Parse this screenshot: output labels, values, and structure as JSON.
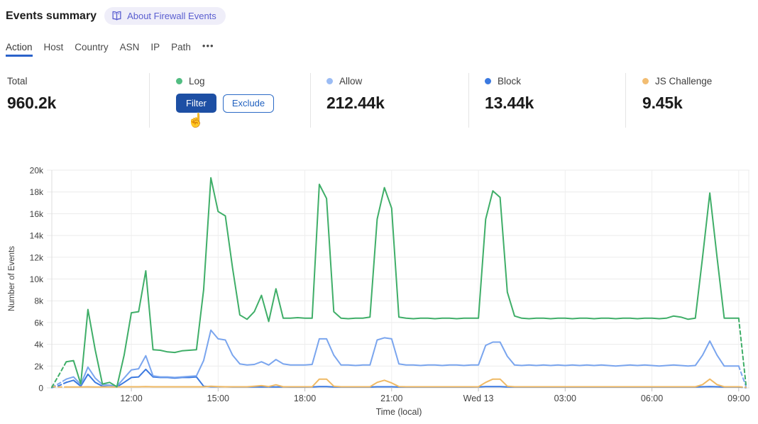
{
  "header": {
    "title": "Events summary",
    "about_label": "About Firewall Events"
  },
  "tabs": {
    "items": [
      "Action",
      "Host",
      "Country",
      "ASN",
      "IP",
      "Path"
    ],
    "active": "Action",
    "overflow": "•••"
  },
  "icons": {
    "book": "open-book",
    "cursor": "☝"
  },
  "stats": {
    "total": {
      "label": "Total",
      "value": "960.2k"
    },
    "log": {
      "label": "Log",
      "dot_color": "#52bd82",
      "filter_label": "Filter",
      "exclude_label": "Exclude"
    },
    "allow": {
      "label": "Allow",
      "value": "212.44k",
      "dot_color": "#9bbcf4"
    },
    "block": {
      "label": "Block",
      "value": "13.44k",
      "dot_color": "#3b79e0"
    },
    "js_challenge": {
      "label": "JS Challenge",
      "value": "9.45k",
      "dot_color": "#f2bd72"
    }
  },
  "chart_data": {
    "type": "line",
    "xlabel": "Time (local)",
    "ylabel": "Number of Events",
    "ylim_k": [
      0,
      20
    ],
    "grid": true,
    "legend_position": "stats-row",
    "x_start": "09:15",
    "x_interval_minutes": 15,
    "dashed_head_points": 2,
    "dashed_tail_points": 1,
    "y_ticks": [
      {
        "label": "0",
        "v": 0
      },
      {
        "label": "2k",
        "v": 2
      },
      {
        "label": "4k",
        "v": 4
      },
      {
        "label": "6k",
        "v": 6
      },
      {
        "label": "8k",
        "v": 8
      },
      {
        "label": "10k",
        "v": 10
      },
      {
        "label": "12k",
        "v": 12
      },
      {
        "label": "14k",
        "v": 14
      },
      {
        "label": "16k",
        "v": 16
      },
      {
        "label": "18k",
        "v": 18
      },
      {
        "label": "20k",
        "v": 20
      }
    ],
    "x_ticks": [
      {
        "label": "12:00",
        "i": 11
      },
      {
        "label": "15:00",
        "i": 23
      },
      {
        "label": "18:00",
        "i": 35
      },
      {
        "label": "21:00",
        "i": 47
      },
      {
        "label": "Wed 13",
        "i": 59
      },
      {
        "label": "03:00",
        "i": 71
      },
      {
        "label": "06:00",
        "i": 83
      },
      {
        "label": "09:00",
        "i": 95
      }
    ],
    "draw_order": [
      2,
      1,
      3,
      0
    ],
    "series": [
      {
        "name": "Log",
        "color": "#3fae68",
        "values_k": [
          0.05,
          1.2,
          2.4,
          2.5,
          0.35,
          7.2,
          3.5,
          0.35,
          0.5,
          0.1,
          3.0,
          6.9,
          7.0,
          10.75,
          3.5,
          3.45,
          3.3,
          3.25,
          3.4,
          3.45,
          3.5,
          9.0,
          19.3,
          16.2,
          15.8,
          11.0,
          6.7,
          6.3,
          7.0,
          8.5,
          6.1,
          9.1,
          6.4,
          6.4,
          6.45,
          6.4,
          6.4,
          18.7,
          17.4,
          7.0,
          6.4,
          6.35,
          6.4,
          6.4,
          6.5,
          15.5,
          18.4,
          16.5,
          6.5,
          6.4,
          6.35,
          6.4,
          6.4,
          6.35,
          6.4,
          6.4,
          6.35,
          6.4,
          6.4,
          6.4,
          15.5,
          18.1,
          17.5,
          8.8,
          6.6,
          6.4,
          6.35,
          6.4,
          6.4,
          6.35,
          6.4,
          6.4,
          6.35,
          6.4,
          6.4,
          6.35,
          6.4,
          6.4,
          6.35,
          6.4,
          6.4,
          6.35,
          6.4,
          6.4,
          6.35,
          6.4,
          6.6,
          6.5,
          6.3,
          6.4,
          12.0,
          17.9,
          12.0,
          6.4,
          6.4,
          6.4,
          0.3
        ]
      },
      {
        "name": "Allow",
        "color": "#7aa5ee",
        "values_k": [
          0.05,
          0.4,
          0.8,
          1.0,
          0.3,
          1.9,
          0.9,
          0.3,
          0.25,
          0.15,
          0.9,
          1.65,
          1.75,
          2.95,
          1.1,
          1.0,
          1.0,
          0.95,
          1.0,
          1.05,
          1.1,
          2.5,
          5.3,
          4.5,
          4.4,
          3.0,
          2.2,
          2.1,
          2.15,
          2.4,
          2.1,
          2.6,
          2.2,
          2.1,
          2.1,
          2.1,
          2.15,
          4.5,
          4.5,
          3.0,
          2.1,
          2.1,
          2.05,
          2.1,
          2.1,
          4.4,
          4.6,
          4.5,
          2.2,
          2.1,
          2.1,
          2.05,
          2.1,
          2.1,
          2.05,
          2.1,
          2.1,
          2.05,
          2.1,
          2.1,
          3.9,
          4.2,
          4.2,
          2.9,
          2.1,
          2.05,
          2.1,
          2.05,
          2.1,
          2.05,
          2.1,
          2.05,
          2.1,
          2.05,
          2.1,
          2.05,
          2.1,
          2.05,
          2.0,
          2.05,
          2.1,
          2.05,
          2.1,
          2.05,
          2.0,
          2.05,
          2.1,
          2.05,
          2.0,
          2.05,
          3.0,
          4.3,
          3.0,
          2.0,
          2.0,
          2.0,
          0.15
        ]
      },
      {
        "name": "Block",
        "color": "#3b79e0",
        "values_k": [
          0.02,
          0.2,
          0.5,
          0.7,
          0.15,
          1.25,
          0.5,
          0.15,
          0.1,
          0.08,
          0.5,
          0.95,
          1.0,
          1.7,
          1.0,
          0.95,
          0.95,
          0.9,
          0.95,
          0.95,
          1.0,
          0.15,
          0.1,
          0.1,
          0.1,
          0.08,
          0.08,
          0.08,
          0.08,
          0.08,
          0.08,
          0.08,
          0.08,
          0.07,
          0.07,
          0.07,
          0.08,
          0.12,
          0.12,
          0.08,
          0.07,
          0.07,
          0.07,
          0.07,
          0.07,
          0.1,
          0.1,
          0.1,
          0.07,
          0.07,
          0.07,
          0.07,
          0.07,
          0.07,
          0.07,
          0.07,
          0.07,
          0.07,
          0.07,
          0.08,
          0.12,
          0.12,
          0.12,
          0.08,
          0.07,
          0.07,
          0.07,
          0.07,
          0.07,
          0.07,
          0.07,
          0.07,
          0.07,
          0.07,
          0.07,
          0.07,
          0.07,
          0.07,
          0.07,
          0.07,
          0.07,
          0.07,
          0.07,
          0.07,
          0.07,
          0.07,
          0.07,
          0.07,
          0.07,
          0.07,
          0.1,
          0.12,
          0.1,
          0.07,
          0.07,
          0.07,
          0.02
        ]
      },
      {
        "name": "JS Challenge",
        "color": "#efb964",
        "values_k": [
          0.12,
          0.08,
          0.08,
          0.08,
          0.08,
          0.1,
          0.08,
          0.08,
          0.08,
          0.08,
          0.1,
          0.1,
          0.1,
          0.12,
          0.1,
          0.1,
          0.1,
          0.1,
          0.1,
          0.1,
          0.1,
          0.1,
          0.15,
          0.12,
          0.1,
          0.1,
          0.1,
          0.1,
          0.15,
          0.2,
          0.12,
          0.28,
          0.1,
          0.1,
          0.1,
          0.1,
          0.1,
          0.8,
          0.8,
          0.15,
          0.1,
          0.1,
          0.1,
          0.1,
          0.1,
          0.5,
          0.7,
          0.45,
          0.12,
          0.1,
          0.1,
          0.1,
          0.1,
          0.1,
          0.1,
          0.1,
          0.1,
          0.1,
          0.1,
          0.1,
          0.5,
          0.8,
          0.8,
          0.15,
          0.1,
          0.1,
          0.1,
          0.1,
          0.1,
          0.1,
          0.1,
          0.1,
          0.1,
          0.1,
          0.1,
          0.1,
          0.1,
          0.1,
          0.1,
          0.1,
          0.1,
          0.1,
          0.1,
          0.1,
          0.1,
          0.1,
          0.1,
          0.1,
          0.1,
          0.1,
          0.3,
          0.8,
          0.3,
          0.1,
          0.1,
          0.1,
          0.05
        ]
      }
    ]
  }
}
